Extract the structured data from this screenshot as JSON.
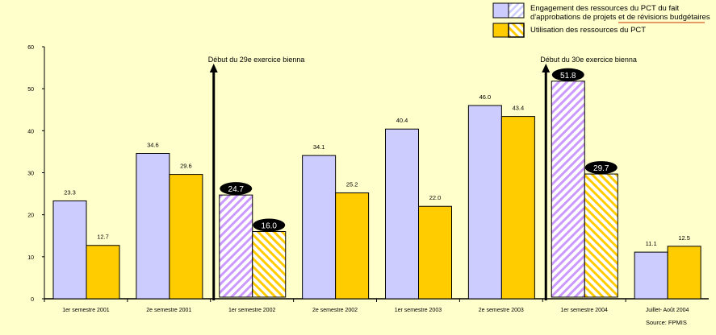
{
  "chart_data": {
    "type": "bar",
    "categories": [
      "1er semestre 2001",
      "2e semestre 2001",
      "1er semestre 2002",
      "2e semestre 2002",
      "1er semestre 2003",
      "2e semestre 2003",
      "1er semestre 2004",
      "Juillet- Août 2004"
    ],
    "series": [
      {
        "name": "Engagement des ressources du PCT du fait d'approbations de projets et de révisions budgétaires",
        "legend_line1": "Engagement des ressources du PCT du fait",
        "legend_line2": "d'approbations de projets et de révisions budgétaires",
        "color": "#CCCCFF",
        "hatch_color": "#CC99FF",
        "values": [
          23.3,
          34.6,
          24.7,
          34.1,
          40.4,
          46.0,
          51.8,
          11.1
        ],
        "labels": [
          "23.3",
          "34.6",
          "24.7",
          "34.1",
          "40.4",
          "46.0",
          "51.8",
          "11.1"
        ]
      },
      {
        "name": "Utilisation des ressources du PCT",
        "legend_line1": "Utilisation des ressources du PCT",
        "color": "#FFCC00",
        "hatch_color": "#FFCC00",
        "values": [
          12.7,
          29.6,
          16.0,
          25.2,
          22.0,
          43.4,
          29.7,
          12.5
        ],
        "labels": [
          "12.7",
          "29.6",
          "16.0",
          "25.2",
          "22.0",
          "43.4",
          "29.7",
          "12.5"
        ]
      }
    ],
    "highlighted_categories": [
      2,
      6
    ],
    "ylim": [
      0,
      60
    ],
    "yticks": [
      0,
      10,
      20,
      30,
      40,
      50,
      60
    ],
    "annotations": [
      {
        "text": "Début du 29e exercice bienna",
        "before_category": 2
      },
      {
        "text": "Début du 30e exercice bienna",
        "before_category": 6
      }
    ],
    "source": "Source: FPMIS",
    "legend_position": "top-right"
  }
}
